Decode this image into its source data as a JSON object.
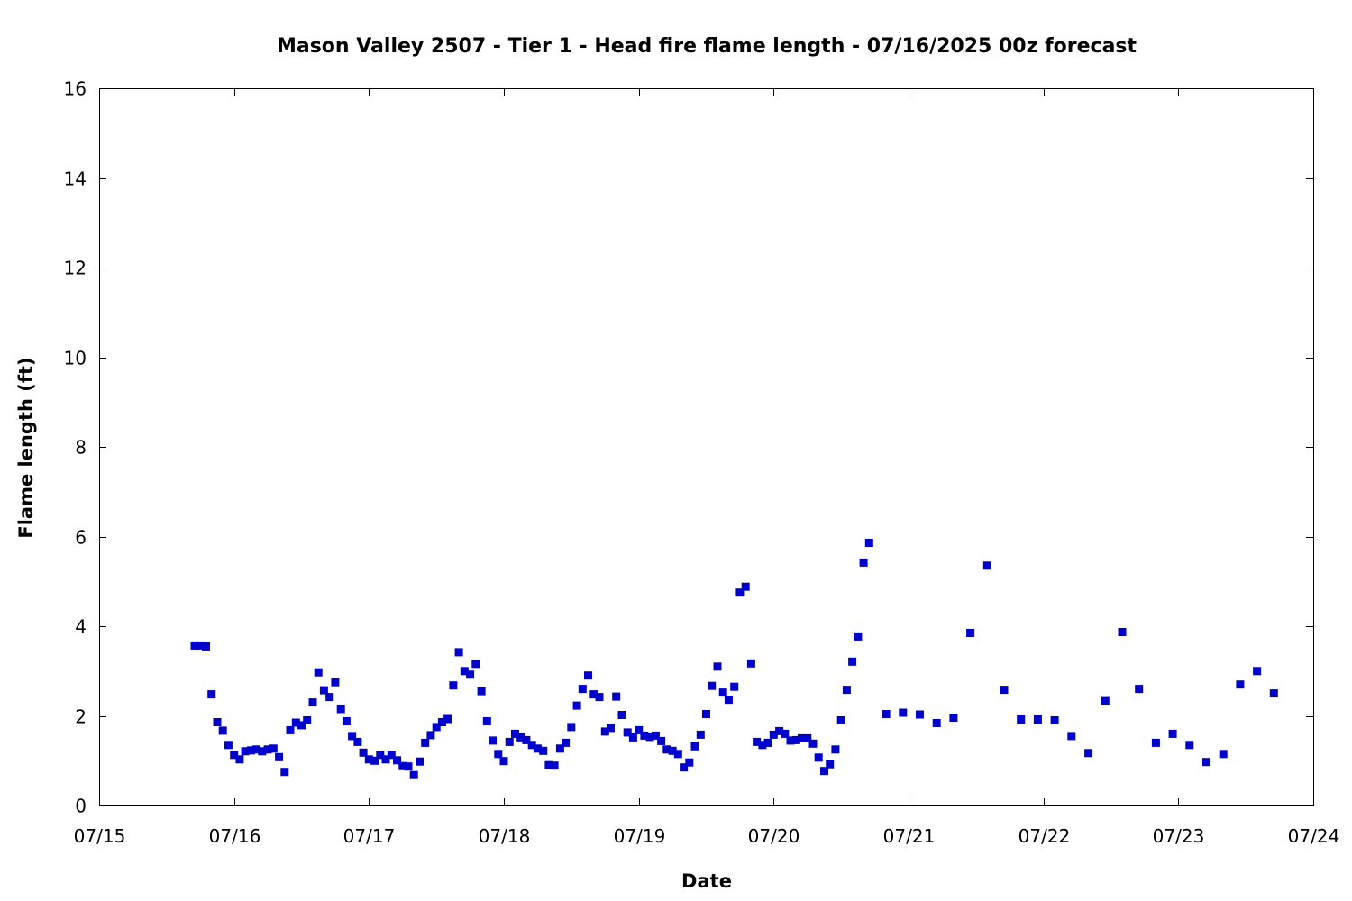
{
  "chart_data": {
    "type": "scatter",
    "title": "Mason Valley 2507 - Tier 1 - Head fire flame length - 07/16/2025 00z forecast",
    "xlabel": "Date",
    "ylabel": "Flame length (ft)",
    "xlim": [
      "07/15",
      "07/24"
    ],
    "ylim": [
      0,
      16
    ],
    "x_ticks": [
      "07/15",
      "07/16",
      "07/17",
      "07/18",
      "07/19",
      "07/20",
      "07/21",
      "07/22",
      "07/23",
      "07/24"
    ],
    "y_ticks": [
      0,
      2,
      4,
      6,
      8,
      10,
      12,
      14,
      16
    ],
    "grid": false,
    "marker_color": "#0000cc",
    "series": [
      {
        "x": [
          "07/15 17:00",
          "07/15 18:00",
          "07/15 19:00",
          "07/15 20:00",
          "07/15 21:00",
          "07/15 22:00",
          "07/15 23:00",
          "07/16 00:00",
          "07/16 01:00",
          "07/16 02:00",
          "07/16 03:00",
          "07/16 04:00",
          "07/16 05:00",
          "07/16 06:00",
          "07/16 07:00",
          "07/16 08:00",
          "07/16 09:00",
          "07/16 10:00",
          "07/16 11:00",
          "07/16 12:00",
          "07/16 13:00",
          "07/16 14:00",
          "07/16 15:00",
          "07/16 16:00",
          "07/16 17:00",
          "07/16 18:00",
          "07/16 19:00",
          "07/16 20:00",
          "07/16 21:00",
          "07/16 22:00",
          "07/16 23:00",
          "07/17 00:00",
          "07/17 01:00",
          "07/17 02:00",
          "07/17 03:00",
          "07/17 04:00",
          "07/17 05:00",
          "07/17 06:00",
          "07/17 07:00",
          "07/17 08:00",
          "07/17 09:00",
          "07/17 10:00",
          "07/17 11:00",
          "07/17 12:00",
          "07/17 13:00",
          "07/17 14:00",
          "07/17 15:00",
          "07/17 16:00",
          "07/17 17:00",
          "07/17 18:00",
          "07/17 19:00",
          "07/17 20:00",
          "07/17 21:00",
          "07/17 22:00",
          "07/17 23:00",
          "07/18 00:00",
          "07/18 01:00",
          "07/18 02:00",
          "07/18 03:00",
          "07/18 04:00",
          "07/18 05:00",
          "07/18 06:00",
          "07/18 07:00",
          "07/18 08:00",
          "07/18 09:00",
          "07/18 10:00",
          "07/18 11:00",
          "07/18 12:00",
          "07/18 13:00",
          "07/18 14:00",
          "07/18 15:00",
          "07/18 16:00",
          "07/18 17:00",
          "07/18 18:00",
          "07/18 19:00",
          "07/18 20:00",
          "07/18 21:00",
          "07/18 22:00",
          "07/18 23:00",
          "07/19 00:00",
          "07/19 01:00",
          "07/19 02:00",
          "07/19 03:00",
          "07/19 04:00",
          "07/19 05:00",
          "07/19 06:00",
          "07/19 07:00",
          "07/19 08:00",
          "07/19 09:00",
          "07/19 10:00",
          "07/19 11:00",
          "07/19 12:00",
          "07/19 13:00",
          "07/19 14:00",
          "07/19 15:00",
          "07/19 16:00",
          "07/19 17:00",
          "07/19 18:00",
          "07/19 19:00",
          "07/19 20:00",
          "07/19 21:00",
          "07/19 22:00",
          "07/19 23:00",
          "07/20 00:00",
          "07/20 01:00",
          "07/20 02:00",
          "07/20 03:00",
          "07/20 04:00",
          "07/20 05:00",
          "07/20 06:00",
          "07/20 07:00",
          "07/20 08:00",
          "07/20 09:00",
          "07/20 10:00",
          "07/20 11:00",
          "07/20 12:00",
          "07/20 13:00",
          "07/20 14:00",
          "07/20 15:00",
          "07/20 16:00",
          "07/20 17:00",
          "07/20 20:00",
          "07/20 23:00",
          "07/21 02:00",
          "07/21 05:00",
          "07/21 08:00",
          "07/21 11:00",
          "07/21 14:00",
          "07/21 17:00",
          "07/21 20:00",
          "07/21 23:00",
          "07/22 02:00",
          "07/22 05:00",
          "07/22 08:00",
          "07/22 11:00",
          "07/22 14:00",
          "07/22 17:00",
          "07/22 20:00",
          "07/22 23:00",
          "07/23 02:00",
          "07/23 05:00",
          "07/23 08:00",
          "07/23 11:00",
          "07/23 14:00",
          "07/23 17:00"
        ],
        "y": [
          3.57,
          3.57,
          3.55,
          2.48,
          1.86,
          1.67,
          1.35,
          1.13,
          1.03,
          1.21,
          1.23,
          1.25,
          1.21,
          1.25,
          1.27,
          1.08,
          0.75,
          1.68,
          1.85,
          1.79,
          1.9,
          2.3,
          2.97,
          2.57,
          2.42,
          2.75,
          2.15,
          1.88,
          1.55,
          1.42,
          1.18,
          1.03,
          1.0,
          1.13,
          1.03,
          1.13,
          1.01,
          0.88,
          0.87,
          0.68,
          0.98,
          1.4,
          1.57,
          1.75,
          1.86,
          1.93,
          2.68,
          3.42,
          3.0,
          2.92,
          3.16,
          2.55,
          1.88,
          1.45,
          1.15,
          0.99,
          1.42,
          1.6,
          1.52,
          1.46,
          1.35,
          1.27,
          1.22,
          0.9,
          0.89,
          1.27,
          1.4,
          1.75,
          2.23,
          2.6,
          2.9,
          2.48,
          2.42,
          1.65,
          1.73,
          2.43,
          2.02,
          1.63,
          1.52,
          1.68,
          1.56,
          1.53,
          1.56,
          1.44,
          1.25,
          1.22,
          1.15,
          0.85,
          0.96,
          1.32,
          1.58,
          2.04,
          2.67,
          3.1,
          2.52,
          2.36,
          2.65,
          4.75,
          4.88,
          3.17,
          1.42,
          1.35,
          1.4,
          1.58,
          1.66,
          1.6,
          1.45,
          1.46,
          1.5,
          1.5,
          1.38,
          1.07,
          0.77,
          0.92,
          1.25,
          1.9,
          2.58,
          3.21,
          3.77,
          5.42,
          5.86,
          2.04,
          2.07,
          2.03,
          1.84,
          1.96,
          3.85,
          5.35,
          2.58,
          1.92,
          1.92,
          1.9,
          1.55,
          1.17,
          2.33,
          3.87,
          2.6,
          1.4,
          1.6,
          1.35,
          0.97,
          1.15,
          2.7,
          3.0,
          2.5
        ]
      }
    ]
  }
}
